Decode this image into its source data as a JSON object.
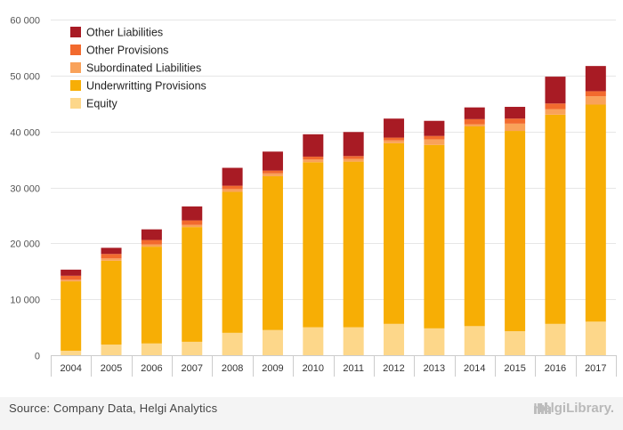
{
  "chart_data": {
    "type": "bar",
    "stacked": true,
    "categories": [
      "2004",
      "2005",
      "2006",
      "2007",
      "2008",
      "2009",
      "2010",
      "2011",
      "2012",
      "2013",
      "2014",
      "2015",
      "2016",
      "2017"
    ],
    "ylim": [
      0,
      60000
    ],
    "yticks": [
      0,
      10000,
      20000,
      30000,
      40000,
      50000,
      60000
    ],
    "ytick_labels": [
      "0",
      "10 000",
      "20 000",
      "30 000",
      "40 000",
      "50 000",
      "60 000"
    ],
    "grid": "horizontal",
    "legend_position": "top-left",
    "series": [
      {
        "name": "Equity",
        "color": "#fdd78a",
        "values": [
          800,
          1900,
          2100,
          2400,
          4000,
          4500,
          5000,
          5000,
          5600,
          4800,
          5200,
          4300,
          5600,
          6000
        ]
      },
      {
        "name": "Underwritting Provisions",
        "color": "#f7ae05",
        "values": [
          12400,
          15000,
          17300,
          20500,
          25200,
          27500,
          29500,
          29600,
          32300,
          32800,
          35700,
          35800,
          37400,
          38800
        ]
      },
      {
        "name": "Subordinated Liabilities",
        "color": "#f9a25a",
        "values": [
          300,
          400,
          400,
          400,
          500,
          500,
          500,
          500,
          500,
          1000,
          400,
          1300,
          1000,
          1500
        ]
      },
      {
        "name": "Other Provisions",
        "color": "#f26a2e",
        "values": [
          700,
          800,
          800,
          800,
          600,
          500,
          500,
          500,
          500,
          600,
          900,
          900,
          1000,
          900
        ]
      },
      {
        "name": "Other Liabilities",
        "color": "#a81b24",
        "values": [
          1100,
          1100,
          1900,
          2500,
          3200,
          3400,
          4000,
          4300,
          3400,
          2700,
          2100,
          2100,
          4800,
          4500
        ]
      }
    ]
  },
  "legend_order": [
    "Other Liabilities",
    "Other Provisions",
    "Subordinated Liabilities",
    "Underwritting Provisions",
    "Equity"
  ],
  "footer": {
    "source": "Source: Company Data, Helgi Analytics",
    "brand": "HelgiLibrary."
  },
  "colors": {
    "grid": "#e6e6e6",
    "axis": "#cccccc",
    "footer_bg": "#f4f4f4"
  }
}
